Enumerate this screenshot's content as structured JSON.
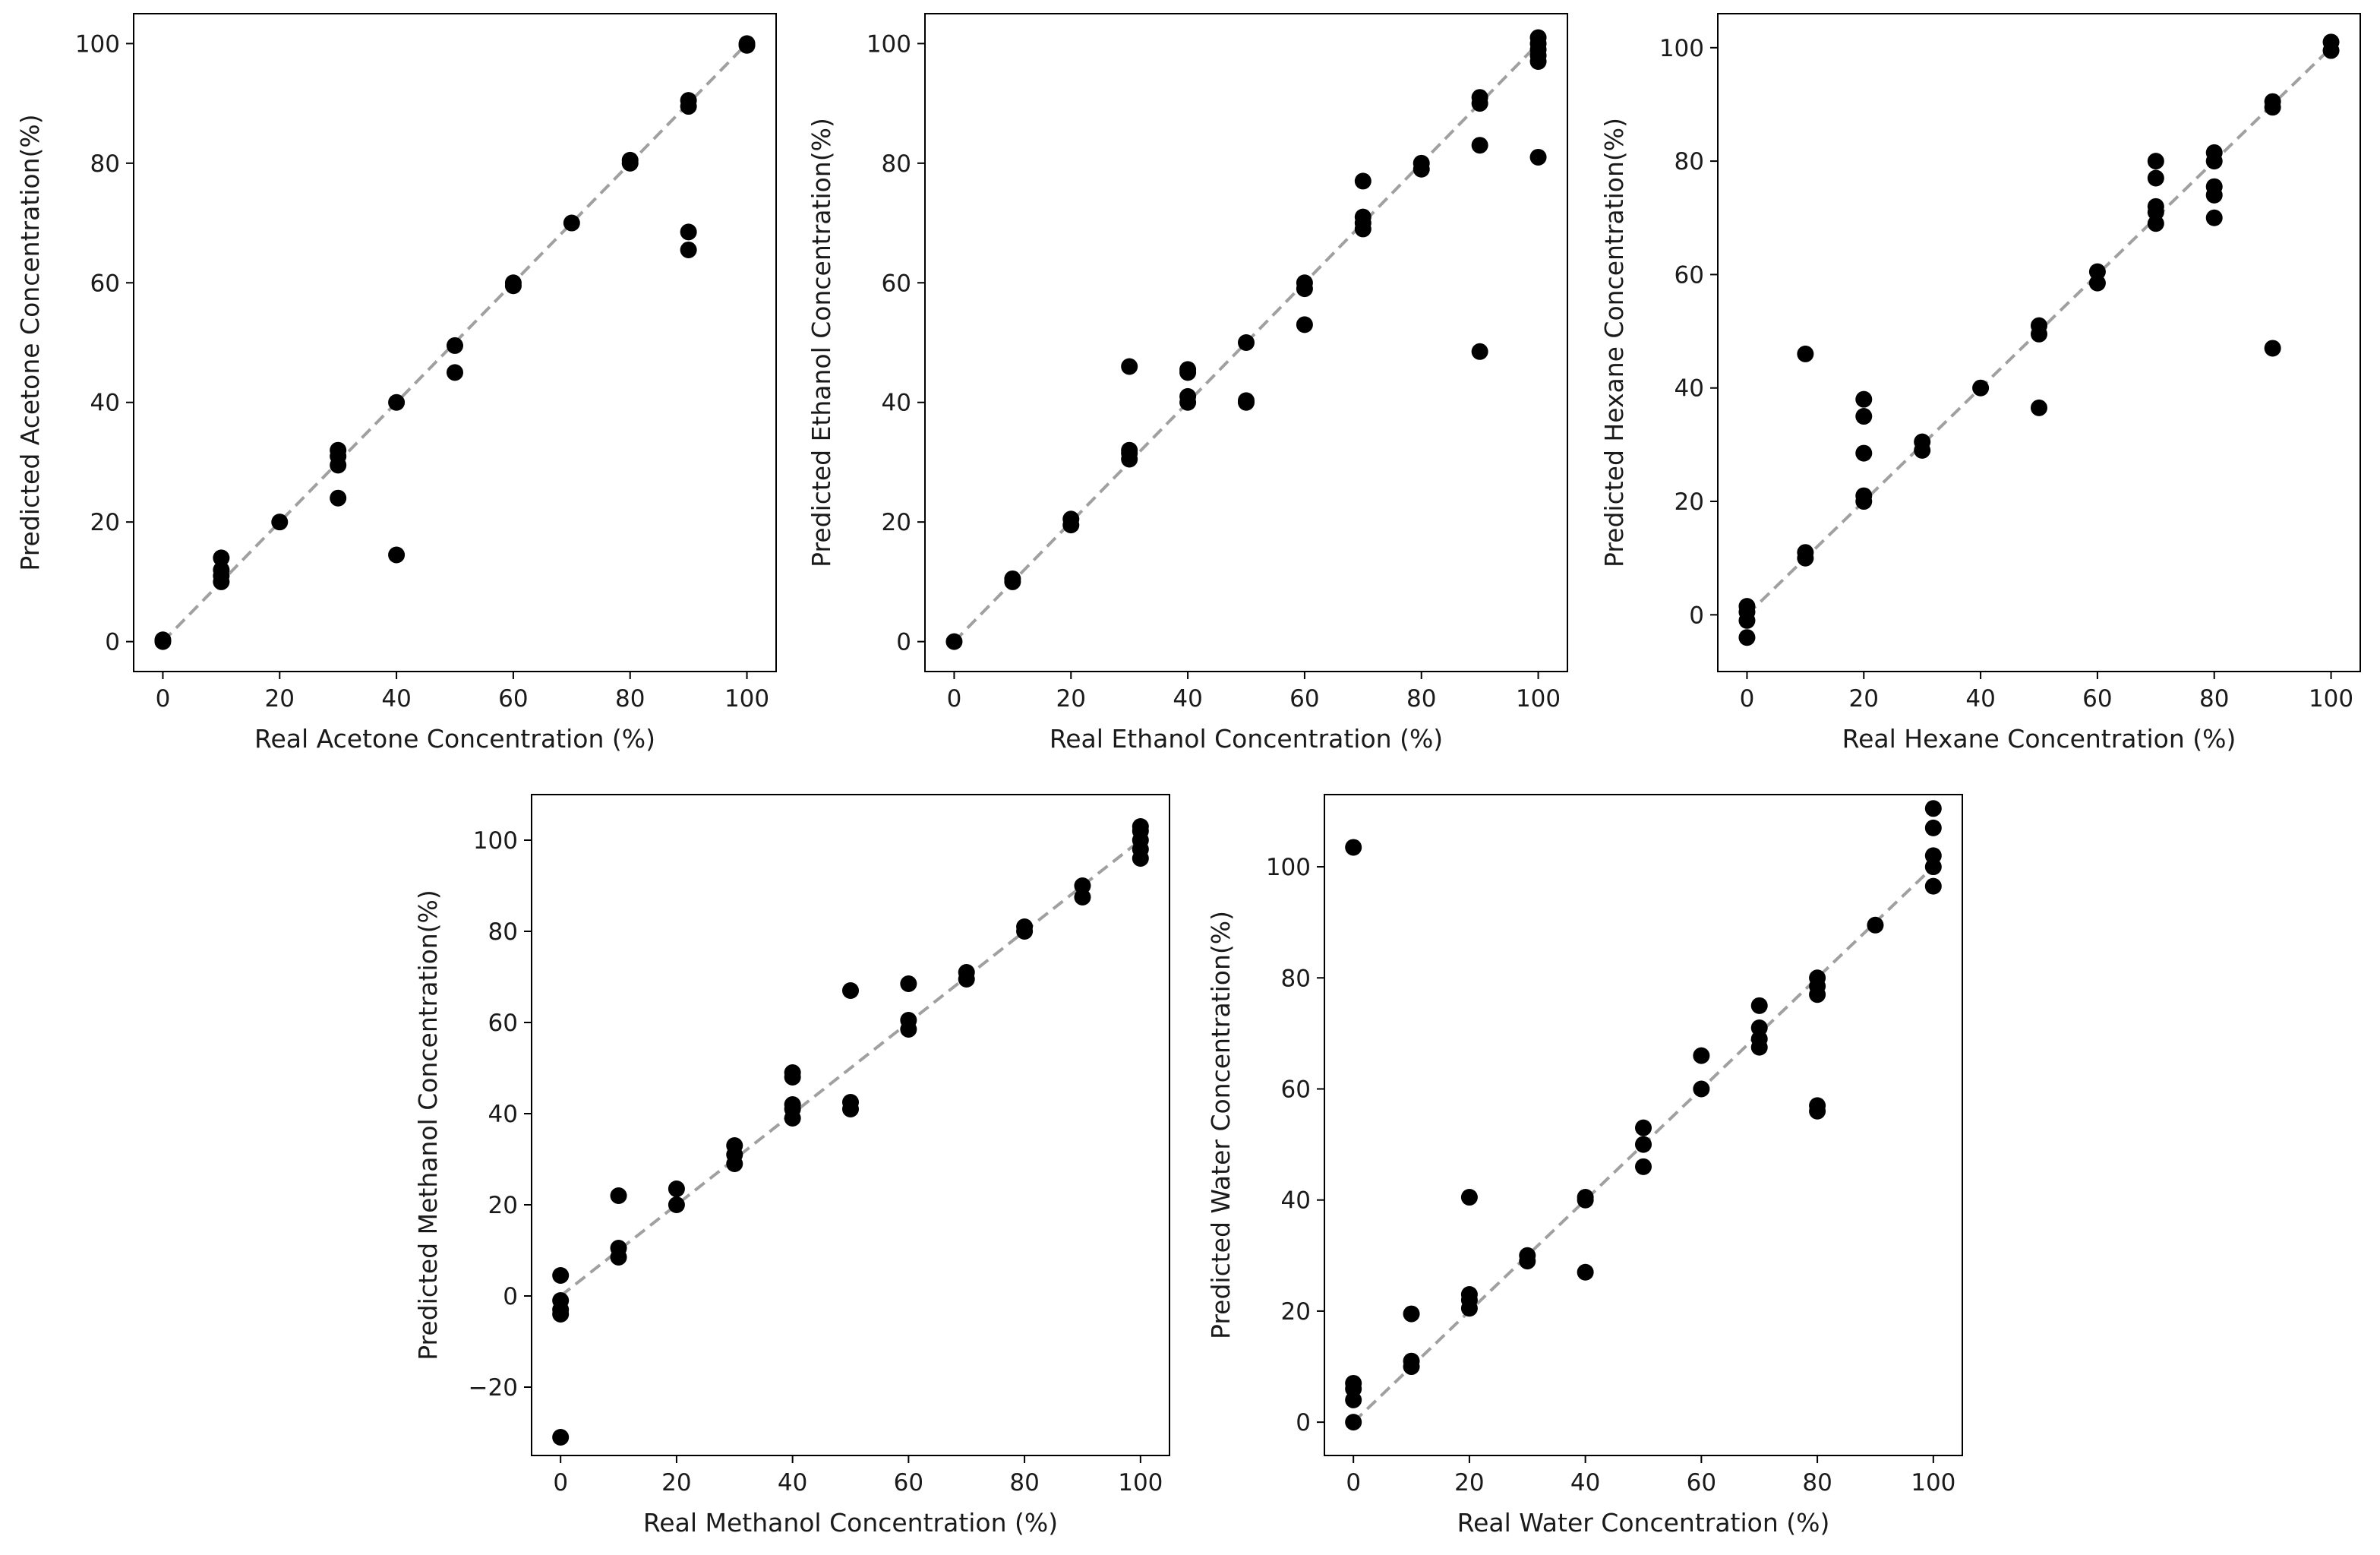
{
  "chart_data": [
    {
      "type": "scatter",
      "title": "",
      "xlabel": "Real Acetone Concentration (%)",
      "ylabel": "Predicted Acetone Concentration(%)",
      "xlim": [
        -5,
        105
      ],
      "ylim": [
        -5,
        105
      ],
      "xticks": [
        0,
        20,
        40,
        60,
        80,
        100
      ],
      "yticks": [
        0,
        20,
        40,
        60,
        80,
        100
      ],
      "grid": false,
      "reference_line": {
        "from": 0,
        "to": 100,
        "style": "dashed",
        "color": "#a0a0a0"
      },
      "points": [
        [
          0,
          0
        ],
        [
          0,
          0.3
        ],
        [
          10,
          10
        ],
        [
          10,
          11
        ],
        [
          10,
          12
        ],
        [
          10,
          14
        ],
        [
          20,
          20
        ],
        [
          30,
          24
        ],
        [
          30,
          29.5
        ],
        [
          30,
          31
        ],
        [
          30,
          32
        ],
        [
          40,
          14.5
        ],
        [
          40,
          40
        ],
        [
          50,
          45
        ],
        [
          50,
          49.5
        ],
        [
          60,
          59.5
        ],
        [
          60,
          60
        ],
        [
          70,
          70
        ],
        [
          80,
          80
        ],
        [
          80,
          80.5
        ],
        [
          90,
          65.5
        ],
        [
          90,
          68.5
        ],
        [
          90,
          89.5
        ],
        [
          90,
          90.5
        ],
        [
          100,
          100
        ],
        [
          100,
          99.7
        ]
      ]
    },
    {
      "type": "scatter",
      "title": "",
      "xlabel": "Real Ethanol Concentration (%)",
      "ylabel": "Predicted Ethanol Concentration(%)",
      "xlim": [
        -5,
        105
      ],
      "ylim": [
        -5,
        105
      ],
      "xticks": [
        0,
        20,
        40,
        60,
        80,
        100
      ],
      "yticks": [
        0,
        20,
        40,
        60,
        80,
        100
      ],
      "grid": false,
      "reference_line": {
        "from": 0,
        "to": 100,
        "style": "dashed",
        "color": "#a0a0a0"
      },
      "points": [
        [
          0,
          0
        ],
        [
          10,
          10
        ],
        [
          10,
          10.5
        ],
        [
          20,
          19.5
        ],
        [
          20,
          20.5
        ],
        [
          30,
          30.5
        ],
        [
          30,
          31.5
        ],
        [
          30,
          32
        ],
        [
          30,
          46
        ],
        [
          40,
          40
        ],
        [
          40,
          41
        ],
        [
          40,
          45
        ],
        [
          40,
          45.5
        ],
        [
          50,
          40
        ],
        [
          50,
          40.3
        ],
        [
          50,
          50
        ],
        [
          60,
          53
        ],
        [
          60,
          59
        ],
        [
          60,
          60
        ],
        [
          70,
          69
        ],
        [
          70,
          70
        ],
        [
          70,
          71
        ],
        [
          70,
          77
        ],
        [
          80,
          79
        ],
        [
          80,
          80
        ],
        [
          90,
          48.5
        ],
        [
          90,
          83
        ],
        [
          90,
          90
        ],
        [
          90,
          91
        ],
        [
          100,
          81
        ],
        [
          100,
          97
        ],
        [
          100,
          98
        ],
        [
          100,
          99
        ],
        [
          100,
          100
        ],
        [
          100,
          101
        ]
      ]
    },
    {
      "type": "scatter",
      "title": "",
      "xlabel": "Real Hexane Concentration (%)",
      "ylabel": "Predicted Hexane Concentration(%)",
      "xlim": [
        -5,
        105
      ],
      "ylim": [
        -10,
        106
      ],
      "xticks": [
        0,
        20,
        40,
        60,
        80,
        100
      ],
      "yticks": [
        0,
        20,
        40,
        60,
        80,
        100
      ],
      "grid": false,
      "reference_line": {
        "from": 0,
        "to": 100,
        "style": "dashed",
        "color": "#a0a0a0"
      },
      "points": [
        [
          0,
          -4
        ],
        [
          0,
          -1
        ],
        [
          0,
          0.5
        ],
        [
          0,
          1.5
        ],
        [
          10,
          10
        ],
        [
          10,
          11
        ],
        [
          10,
          46
        ],
        [
          20,
          20
        ],
        [
          20,
          21
        ],
        [
          20,
          28.5
        ],
        [
          20,
          35
        ],
        [
          20,
          38
        ],
        [
          30,
          29
        ],
        [
          30,
          30.5
        ],
        [
          40,
          40
        ],
        [
          50,
          36.5
        ],
        [
          50,
          49.5
        ],
        [
          50,
          51
        ],
        [
          60,
          58.5
        ],
        [
          60,
          60.5
        ],
        [
          70,
          69
        ],
        [
          70,
          71
        ],
        [
          70,
          72
        ],
        [
          70,
          77
        ],
        [
          70,
          80
        ],
        [
          80,
          70
        ],
        [
          80,
          74
        ],
        [
          80,
          75.5
        ],
        [
          80,
          80
        ],
        [
          80,
          81.5
        ],
        [
          90,
          47
        ],
        [
          90,
          89.5
        ],
        [
          90,
          90.5
        ],
        [
          100,
          99.5
        ],
        [
          100,
          101
        ]
      ]
    },
    {
      "type": "scatter",
      "title": "",
      "xlabel": "Real Methanol Concentration (%)",
      "ylabel": "Predicted Methanol Concentration(%)",
      "xlim": [
        -5,
        105
      ],
      "ylim": [
        -35,
        110
      ],
      "xticks": [
        0,
        20,
        40,
        60,
        80,
        100
      ],
      "yticks": [
        -20,
        0,
        20,
        40,
        60,
        80,
        100
      ],
      "grid": false,
      "reference_line": {
        "from": 0,
        "to": 100,
        "style": "dashed",
        "color": "#a0a0a0"
      },
      "points": [
        [
          0,
          -31
        ],
        [
          0,
          -4
        ],
        [
          0,
          -3
        ],
        [
          0,
          -1
        ],
        [
          0,
          4.5
        ],
        [
          10,
          8.5
        ],
        [
          10,
          10.5
        ],
        [
          10,
          22
        ],
        [
          20,
          20
        ],
        [
          20,
          23.5
        ],
        [
          30,
          29
        ],
        [
          30,
          31
        ],
        [
          30,
          33
        ],
        [
          40,
          39
        ],
        [
          40,
          41
        ],
        [
          40,
          42
        ],
        [
          40,
          48
        ],
        [
          40,
          49
        ],
        [
          50,
          41
        ],
        [
          50,
          42.5
        ],
        [
          50,
          67
        ],
        [
          60,
          58.5
        ],
        [
          60,
          60.5
        ],
        [
          60,
          68.5
        ],
        [
          70,
          69.5
        ],
        [
          70,
          71
        ],
        [
          80,
          80
        ],
        [
          80,
          81
        ],
        [
          90,
          87.5
        ],
        [
          90,
          90
        ],
        [
          100,
          96
        ],
        [
          100,
          98
        ],
        [
          100,
          100
        ],
        [
          100,
          102
        ],
        [
          100,
          103
        ]
      ]
    },
    {
      "type": "scatter",
      "title": "",
      "xlabel": "Real Water Concentration (%)",
      "ylabel": "Predicted Water Concentration(%)",
      "xlim": [
        -5,
        105
      ],
      "ylim": [
        -6,
        113
      ],
      "xticks": [
        0,
        20,
        40,
        60,
        80,
        100
      ],
      "yticks": [
        0,
        20,
        40,
        60,
        80,
        100
      ],
      "grid": false,
      "reference_line": {
        "from": 0,
        "to": 100,
        "style": "dashed",
        "color": "#a0a0a0"
      },
      "points": [
        [
          0,
          0
        ],
        [
          0,
          4
        ],
        [
          0,
          6
        ],
        [
          0,
          7
        ],
        [
          0,
          103.5
        ],
        [
          10,
          10
        ],
        [
          10,
          11
        ],
        [
          10,
          19.5
        ],
        [
          20,
          20.5
        ],
        [
          20,
          22
        ],
        [
          20,
          23
        ],
        [
          20,
          40.5
        ],
        [
          30,
          29
        ],
        [
          30,
          30
        ],
        [
          40,
          27
        ],
        [
          40,
          40
        ],
        [
          40,
          40.5
        ],
        [
          50,
          46
        ],
        [
          50,
          50
        ],
        [
          50,
          53
        ],
        [
          60,
          60
        ],
        [
          60,
          66
        ],
        [
          70,
          67.5
        ],
        [
          70,
          69
        ],
        [
          70,
          71
        ],
        [
          70,
          75
        ],
        [
          80,
          56
        ],
        [
          80,
          57
        ],
        [
          80,
          77
        ],
        [
          80,
          78.5
        ],
        [
          80,
          80
        ],
        [
          90,
          89.5
        ],
        [
          100,
          96.5
        ],
        [
          100,
          100
        ],
        [
          100,
          102
        ],
        [
          100,
          107
        ],
        [
          100,
          110.5
        ]
      ]
    }
  ],
  "colors": {
    "marker": "#000000",
    "reference": "#a0a0a0",
    "axes": "#000000"
  }
}
